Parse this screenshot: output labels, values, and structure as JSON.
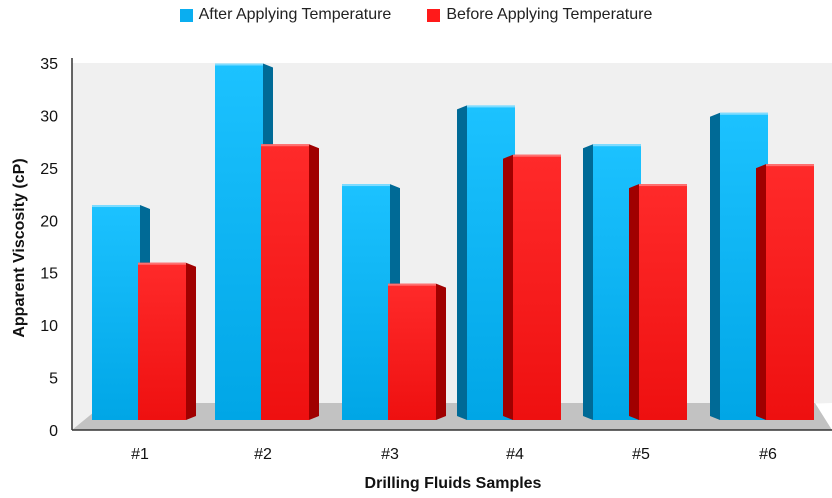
{
  "chart_data": {
    "type": "bar",
    "title": "",
    "xlabel": "Drilling Fluids Samples",
    "ylabel": "Apparent Viscosity (cP)",
    "categories": [
      "#1",
      "#2",
      "#3",
      "#4",
      "#5",
      "#6"
    ],
    "series": [
      {
        "name": "After Applying Temperature",
        "color": "#0aaef0",
        "values": [
          20.5,
          34,
          22.5,
          30,
          26.3,
          29.3
        ]
      },
      {
        "name": "Before Applying Temperature",
        "color": "#ff1a1a",
        "values": [
          15,
          26.3,
          13,
          25.3,
          22.5,
          24.4
        ]
      }
    ],
    "ylim": [
      0,
      35
    ],
    "yticks": [
      0,
      5,
      10,
      15,
      20,
      25,
      30,
      35
    ],
    "grid": false,
    "legend": "top-center"
  }
}
